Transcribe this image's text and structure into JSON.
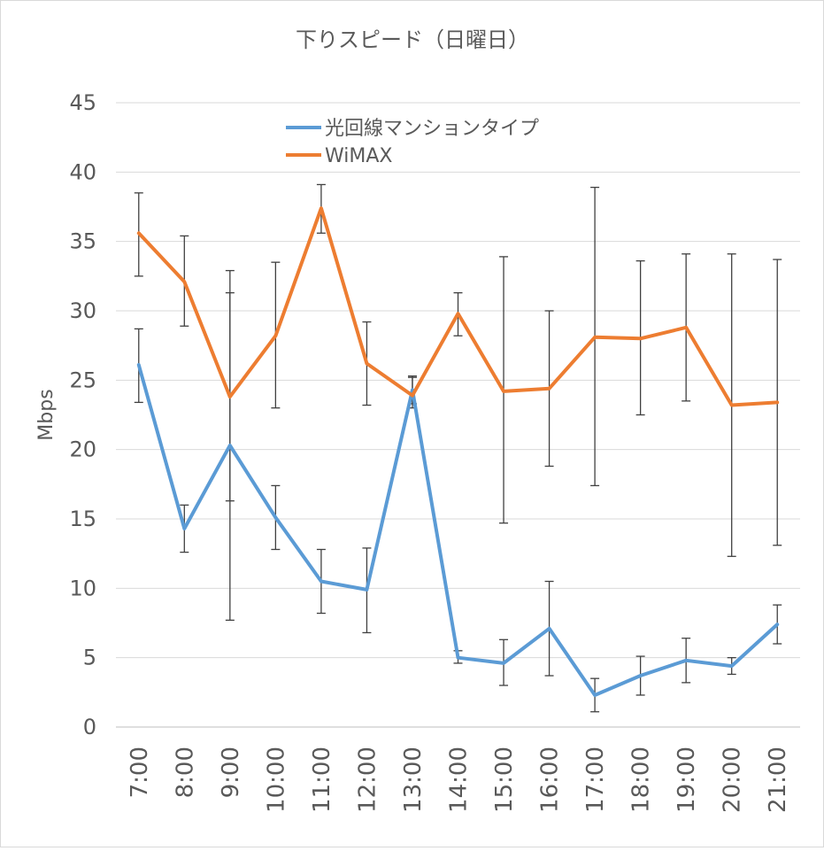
{
  "chart_data": {
    "type": "line",
    "title": "下りスピード（日曜日）",
    "xlabel": "",
    "ylabel": "Mbps",
    "ylim": [
      0,
      45
    ],
    "yticks": [
      "0",
      "5",
      "10",
      "15",
      "20",
      "25",
      "30",
      "35",
      "40",
      "45"
    ],
    "categories": [
      "7:00",
      "8:00",
      "9:00",
      "10:00",
      "11:00",
      "12:00",
      "13:00",
      "14:00",
      "15:00",
      "16:00",
      "17:00",
      "18:00",
      "19:00",
      "20:00",
      "21:00"
    ],
    "grid": true,
    "legend_position": "top",
    "series": [
      {
        "name": "光回線マンションタイプ",
        "color": "#5b9bd5",
        "values": [
          26.1,
          14.3,
          20.3,
          15.1,
          10.5,
          9.9,
          24.3,
          5.0,
          4.6,
          7.1,
          2.3,
          3.7,
          4.8,
          4.4,
          7.4
        ],
        "error_low": [
          23.4,
          12.6,
          7.7,
          12.8,
          8.2,
          6.8,
          23.3,
          4.6,
          3.0,
          3.7,
          1.1,
          2.3,
          3.2,
          3.8,
          6.0
        ],
        "error_high": [
          28.7,
          16.0,
          32.9,
          17.4,
          12.8,
          12.9,
          25.3,
          5.5,
          6.3,
          10.5,
          3.5,
          5.1,
          6.4,
          5.0,
          8.8
        ]
      },
      {
        "name": "WiMAX",
        "color": "#ed7d31",
        "values": [
          35.6,
          32.1,
          23.8,
          28.2,
          37.4,
          26.2,
          23.9,
          29.8,
          24.2,
          24.4,
          28.1,
          28.0,
          28.8,
          23.2,
          23.4
        ],
        "error_low": [
          32.5,
          28.9,
          16.3,
          23.0,
          35.6,
          23.2,
          23.0,
          28.2,
          14.7,
          18.8,
          17.4,
          22.5,
          23.5,
          12.3,
          13.1
        ],
        "error_high": [
          38.5,
          35.4,
          31.3,
          33.5,
          39.1,
          29.2,
          25.2,
          31.3,
          33.9,
          30.0,
          38.9,
          33.6,
          34.1,
          34.1,
          33.7
        ]
      }
    ]
  }
}
